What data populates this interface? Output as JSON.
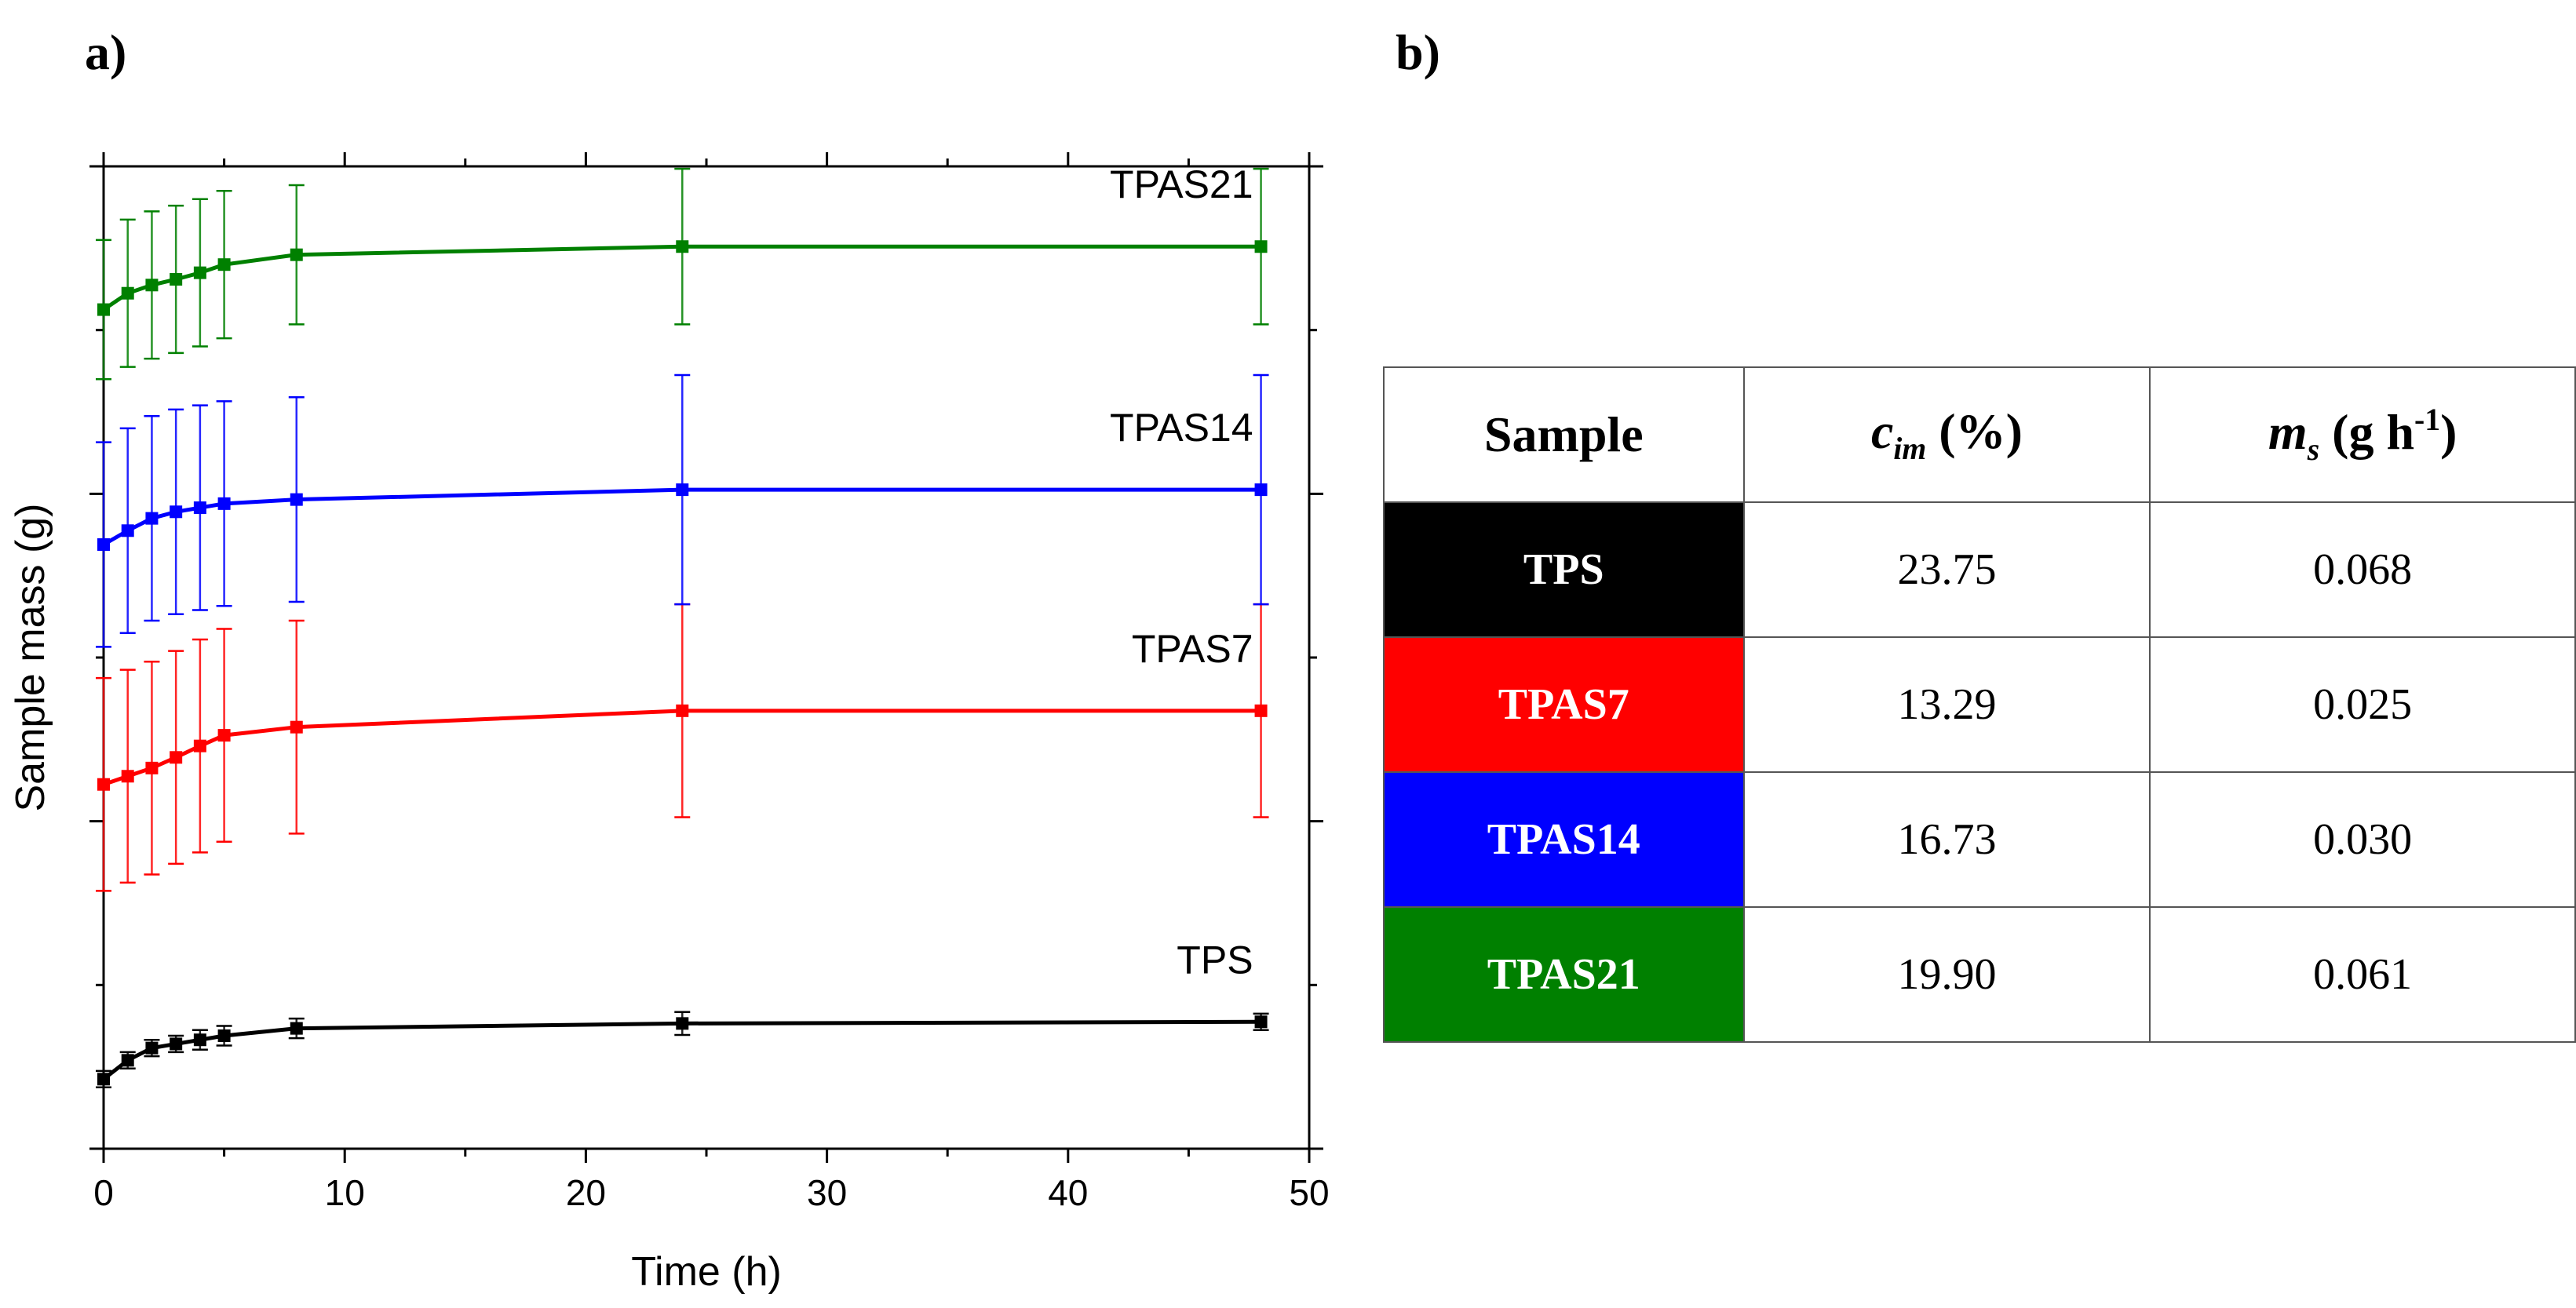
{
  "panels": {
    "a_label": "a)",
    "b_label": "b)"
  },
  "chart_data": {
    "type": "line",
    "xlabel": "Time (h)",
    "ylabel": "Sample mass (g)",
    "xlim": [
      0,
      50
    ],
    "x_ticks": [
      0,
      10,
      20,
      30,
      40,
      50
    ],
    "ylim": [
      0,
      10
    ],
    "y_tick_labels_shown": false,
    "grid": false,
    "legend": "inline labels next to each curve",
    "x": [
      0,
      1,
      2,
      3,
      4,
      5,
      8,
      24,
      48
    ],
    "series": [
      {
        "name": "TPS",
        "color": "#000000",
        "values": [
          0.85,
          1.08,
          1.23,
          1.28,
          1.33,
          1.38,
          1.47,
          1.53,
          1.55
        ],
        "errors": [
          0.1,
          0.1,
          0.1,
          0.1,
          0.12,
          0.12,
          0.12,
          0.14,
          0.1
        ]
      },
      {
        "name": "TPAS7",
        "color": "#ff0000",
        "values": [
          4.45,
          4.55,
          4.65,
          4.78,
          4.92,
          5.05,
          5.15,
          5.35,
          5.35
        ],
        "errors": [
          1.3,
          1.3,
          1.3,
          1.3,
          1.3,
          1.3,
          1.3,
          1.3,
          1.3
        ]
      },
      {
        "name": "TPAS14",
        "color": "#0000ff",
        "values": [
          7.38,
          7.55,
          7.7,
          7.78,
          7.83,
          7.88,
          7.93,
          8.05,
          8.05
        ],
        "errors": [
          1.25,
          1.25,
          1.25,
          1.25,
          1.25,
          1.25,
          1.25,
          1.4,
          1.4
        ]
      },
      {
        "name": "TPAS21",
        "color": "#008000",
        "values": [
          10.25,
          10.45,
          10.55,
          10.62,
          10.7,
          10.8,
          10.92,
          11.02,
          11.02
        ],
        "errors": [
          0.85,
          0.9,
          0.9,
          0.9,
          0.9,
          0.9,
          0.85,
          0.95,
          0.95
        ]
      }
    ]
  },
  "table": {
    "headers": {
      "sample": "Sample",
      "cim_main": "c",
      "cim_sub": "im",
      "cim_rest": " (%)",
      "ms_main": "m",
      "ms_sub": "s",
      "ms_rest": " (g h",
      "ms_sup": "-1",
      "ms_close": ")"
    },
    "rows": [
      {
        "sample": "TPS",
        "color": "#000000",
        "c_im": "23.75",
        "m_s": "0.068"
      },
      {
        "sample": "TPAS7",
        "color": "#ff0000",
        "c_im": "13.29",
        "m_s": "0.025"
      },
      {
        "sample": "TPAS14",
        "color": "#0000ff",
        "c_im": "16.73",
        "m_s": "0.030"
      },
      {
        "sample": "TPAS21",
        "color": "#008000",
        "c_im": "19.90",
        "m_s": "0.061"
      }
    ]
  }
}
